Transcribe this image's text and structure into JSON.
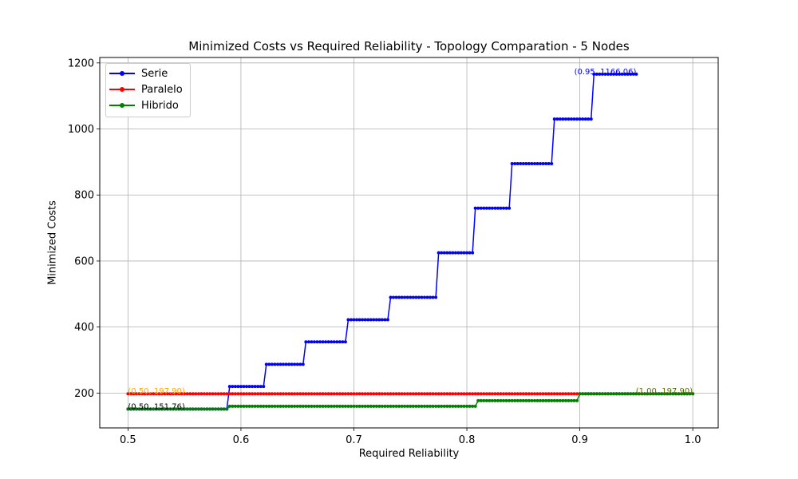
{
  "chart_data": {
    "type": "line",
    "title": "Minimized Costs vs Required Reliability - Topology Comparation - 5 Nodes",
    "xlabel": "Required Reliability",
    "ylabel": "Minimized Costs",
    "xlim": [
      0.475,
      1.0225
    ],
    "ylim": [
      94.5,
      1216.5
    ],
    "xticks": [
      0.5,
      0.6,
      0.7,
      0.8,
      0.9,
      1.0
    ],
    "xtick_labels": [
      "0.5",
      "0.6",
      "0.7",
      "0.8",
      "0.9",
      "1.0"
    ],
    "yticks": [
      200,
      400,
      600,
      800,
      1000,
      1200
    ],
    "ytick_labels": [
      "200",
      "400",
      "600",
      "800",
      "1000",
      "1200"
    ],
    "grid": true,
    "legend_position": "top-left",
    "series": [
      {
        "name": "Serie",
        "color": "#0000ff",
        "x_start": 0.5,
        "x_end": 0.95,
        "step": 0.0025,
        "levels": [
          {
            "x_from": 0.5,
            "y": 151.76
          },
          {
            "x_from": 0.59,
            "y": 220
          },
          {
            "x_from": 0.6225,
            "y": 287
          },
          {
            "x_from": 0.6575,
            "y": 355
          },
          {
            "x_from": 0.695,
            "y": 422
          },
          {
            "x_from": 0.7325,
            "y": 490
          },
          {
            "x_from": 0.775,
            "y": 625
          },
          {
            "x_from": 0.8075,
            "y": 760
          },
          {
            "x_from": 0.84,
            "y": 895
          },
          {
            "x_from": 0.8775,
            "y": 1030
          },
          {
            "x_from": 0.9125,
            "y": 1166.06
          }
        ]
      },
      {
        "name": "Paralelo",
        "color": "#ff0000",
        "x_start": 0.5,
        "x_end": 1.0,
        "step": 0.0025,
        "levels": [
          {
            "x_from": 0.5,
            "y": 197.9
          }
        ]
      },
      {
        "name": "Hibrido",
        "color": "#008000",
        "x_start": 0.5,
        "x_end": 1.0,
        "step": 0.0025,
        "levels": [
          {
            "x_from": 0.5,
            "y": 151.76
          },
          {
            "x_from": 0.59,
            "y": 160
          },
          {
            "x_from": 0.81,
            "y": 177
          },
          {
            "x_from": 0.9,
            "y": 197.9
          }
        ]
      }
    ],
    "annotations": [
      {
        "text": "(0.95, 1166.06)",
        "x": 0.95,
        "y": 1166.06,
        "color": "#0000ff",
        "anchor": "end"
      },
      {
        "text": "(0.50, 197.90)",
        "x": 0.5,
        "y": 197.9,
        "color": "#ffa500",
        "anchor": "start"
      },
      {
        "text": "(0.50, 151.76)",
        "x": 0.5,
        "y": 151.76,
        "color": "#000000",
        "anchor": "start"
      },
      {
        "text": "(1.00, 197.90)",
        "x": 1.0,
        "y": 197.9,
        "color": "#556b00",
        "anchor": "end"
      }
    ]
  }
}
